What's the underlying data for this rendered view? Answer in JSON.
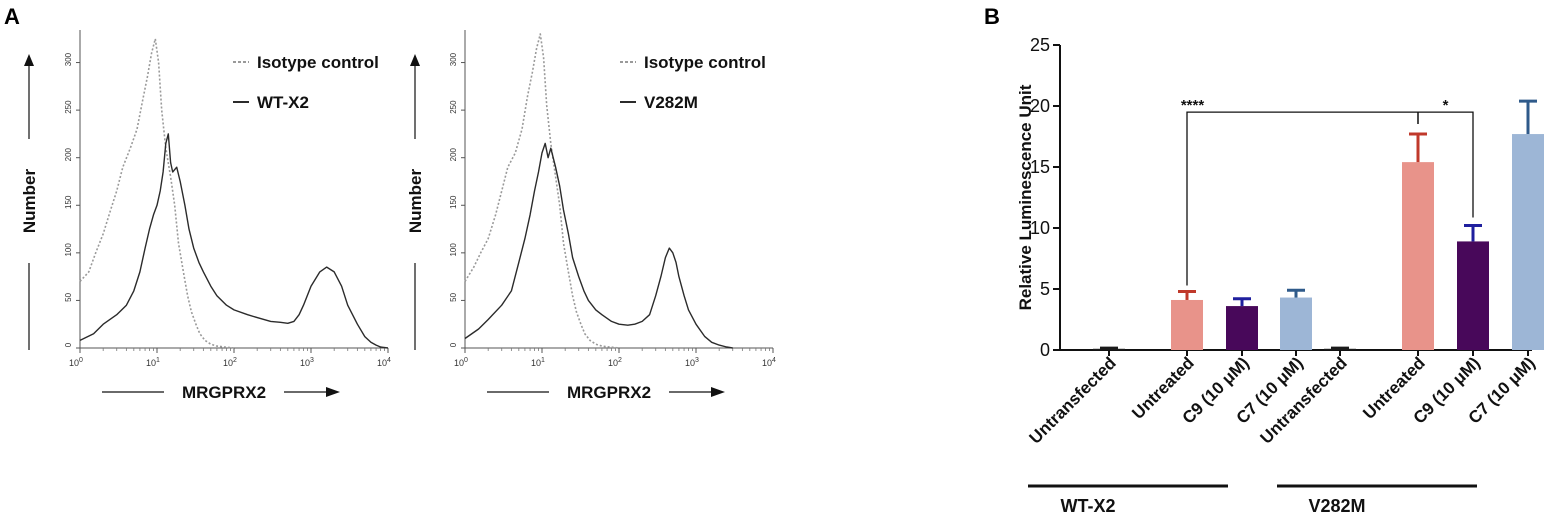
{
  "panels": {
    "a_letter": "A",
    "b_letter": "B"
  },
  "chart_data": [
    {
      "type": "line",
      "panel": "A-left",
      "xlabel": "MRGPRX2",
      "ylabel": "Number",
      "x_scale": "log",
      "xlim": [
        1,
        10000
      ],
      "ylim": [
        0,
        330
      ],
      "x_tick_labels": [
        "10^0",
        "10^1",
        "10^2",
        "10^3",
        "10^4"
      ],
      "y_tick_labels": [
        "0",
        "50",
        "100",
        "150",
        "200",
        "250",
        "300"
      ],
      "y_ticks": [
        0,
        50,
        100,
        150,
        200,
        250,
        300
      ],
      "legend_position": "top-right",
      "series": [
        {
          "name": "Isotype control",
          "style": "dotted",
          "color": "#9a9a9a",
          "x": [
            1,
            1.3,
            1.6,
            2,
            2.5,
            3,
            3.6,
            4.5,
            5.5,
            6.5,
            7.5,
            8.5,
            9.5,
            10.5,
            11.5,
            13,
            15,
            17,
            19,
            22,
            25,
            28,
            32,
            36,
            42,
            50,
            60,
            75,
            100
          ],
          "y": [
            70,
            80,
            100,
            120,
            145,
            165,
            190,
            210,
            230,
            260,
            285,
            310,
            325,
            300,
            250,
            210,
            180,
            150,
            110,
            80,
            55,
            38,
            25,
            15,
            8,
            4,
            2,
            1,
            0
          ]
        },
        {
          "name": "WT-X2",
          "style": "solid",
          "color": "#2b2b2b",
          "x": [
            1,
            1.5,
            2,
            3,
            4,
            5,
            6,
            7,
            8,
            9,
            10,
            11,
            12,
            13,
            14,
            15,
            16,
            18,
            20,
            23,
            26,
            30,
            35,
            40,
            50,
            60,
            80,
            100,
            150,
            200,
            300,
            400,
            500,
            600,
            700,
            800,
            1000,
            1300,
            1600,
            2000,
            2500,
            3000,
            4000,
            5000,
            6000,
            7000,
            8000,
            10000
          ],
          "y": [
            8,
            15,
            25,
            35,
            45,
            60,
            80,
            105,
            125,
            140,
            150,
            165,
            185,
            215,
            225,
            195,
            185,
            190,
            175,
            150,
            125,
            105,
            90,
            80,
            65,
            55,
            45,
            40,
            35,
            32,
            28,
            27,
            26,
            28,
            35,
            45,
            65,
            80,
            85,
            80,
            65,
            45,
            25,
            12,
            6,
            3,
            1,
            0
          ]
        }
      ]
    },
    {
      "type": "line",
      "panel": "A-right",
      "xlabel": "MRGPRX2",
      "ylabel": "Number",
      "x_scale": "log",
      "xlim": [
        1,
        10000
      ],
      "ylim": [
        0,
        330
      ],
      "x_tick_labels": [
        "10^0",
        "10^1",
        "10^2",
        "10^3",
        "10^4"
      ],
      "y_tick_labels": [
        "0",
        "50",
        "100",
        "150",
        "200",
        "250",
        "300"
      ],
      "y_ticks": [
        0,
        50,
        100,
        150,
        200,
        250,
        300
      ],
      "legend_position": "top-right",
      "series": [
        {
          "name": "Isotype control",
          "style": "dotted",
          "color": "#9a9a9a",
          "x": [
            1,
            1.3,
            1.6,
            2,
            2.5,
            3,
            3.6,
            4.5,
            5.5,
            6.5,
            7.5,
            8.5,
            9.5,
            10.5,
            11.5,
            13,
            15,
            17,
            19,
            22,
            25,
            28,
            32,
            36,
            42,
            50,
            60,
            75,
            100
          ],
          "y": [
            70,
            85,
            100,
            115,
            140,
            165,
            190,
            205,
            230,
            265,
            290,
            315,
            330,
            305,
            255,
            215,
            180,
            150,
            110,
            80,
            55,
            38,
            25,
            15,
            8,
            4,
            2,
            1,
            0
          ]
        },
        {
          "name": "V282M",
          "style": "solid",
          "color": "#2b2b2b",
          "x": [
            1,
            1.5,
            2,
            3,
            4,
            5,
            6,
            7,
            8,
            9,
            10,
            11,
            12,
            13,
            15,
            17,
            19,
            22,
            25,
            30,
            35,
            40,
            50,
            60,
            80,
            100,
            130,
            160,
            200,
            250,
            300,
            350,
            400,
            450,
            500,
            550,
            600,
            700,
            800,
            1000,
            1300,
            1600,
            2000,
            2500,
            3000
          ],
          "y": [
            10,
            20,
            30,
            45,
            60,
            90,
            115,
            140,
            165,
            185,
            205,
            215,
            200,
            210,
            190,
            170,
            145,
            120,
            95,
            75,
            60,
            50,
            40,
            35,
            28,
            25,
            24,
            25,
            28,
            35,
            55,
            75,
            95,
            105,
            100,
            90,
            75,
            55,
            40,
            25,
            12,
            6,
            3,
            1,
            0
          ]
        }
      ]
    },
    {
      "type": "bar",
      "panel": "B",
      "ylabel": "Relative Luminescence Unit",
      "ylim": [
        0,
        25
      ],
      "y_ticks": [
        0,
        5,
        10,
        15,
        20,
        25
      ],
      "y_tick_labels": [
        "0",
        "5",
        "10",
        "15",
        "20",
        "25"
      ],
      "categories": [
        "Untransfected",
        "Untreated",
        "C9 (10 μM)",
        "C7 (10 μM)",
        "Untransfected",
        "Untreated",
        "C9 (10 μM)",
        "C7 (10 μM)"
      ],
      "values": [
        0.1,
        4.1,
        3.6,
        4.3,
        0.1,
        15.4,
        8.9,
        17.7
      ],
      "errors": [
        0.05,
        0.7,
        0.6,
        0.6,
        0.05,
        2.3,
        1.3,
        2.7
      ],
      "colors": [
        "#1a1a1a",
        "#e8938a",
        "#48085a",
        "#9db6d6",
        "#1a1a1a",
        "#e8938a",
        "#48085a",
        "#9db6d6"
      ],
      "error_colors": [
        "#1a1a1a",
        "#c0392b",
        "#1f1f9e",
        "#2f5a8a",
        "#1a1a1a",
        "#c0392b",
        "#1f1f9e",
        "#2f5a8a"
      ],
      "groups": [
        {
          "label": "WT-X2",
          "members": [
            0,
            1,
            2,
            3
          ]
        },
        {
          "label": "V282M",
          "members": [
            4,
            5,
            6,
            7
          ]
        }
      ],
      "significance": [
        {
          "from": 1,
          "to": 5,
          "label": "****",
          "y": 19.5
        },
        {
          "from": 5,
          "to": 6,
          "label": "*",
          "y": 19.5
        }
      ]
    }
  ]
}
